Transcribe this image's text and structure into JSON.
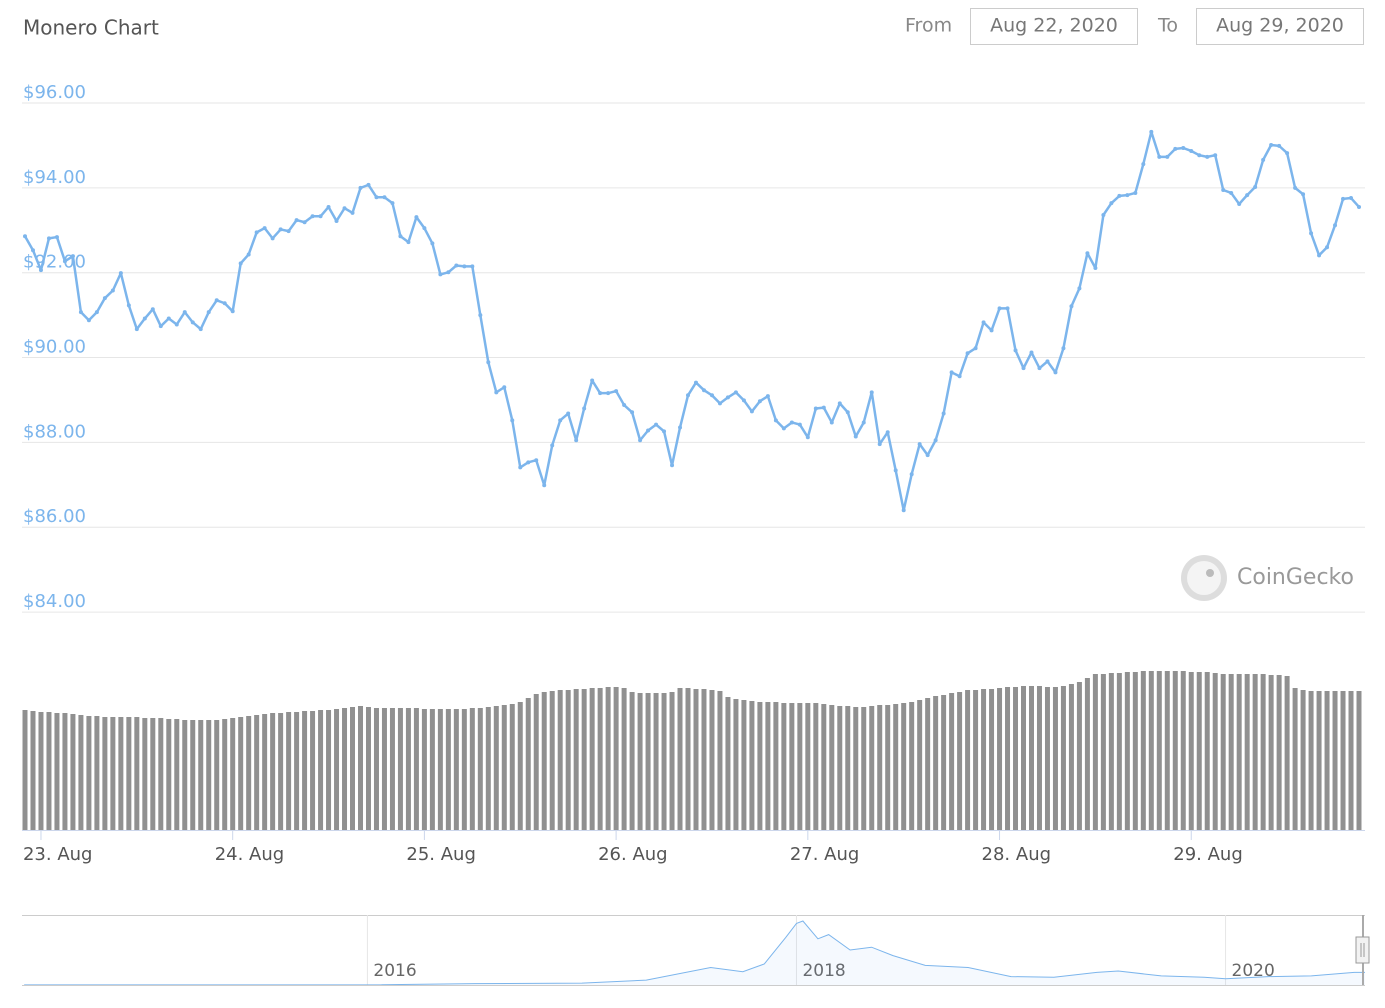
{
  "chart_data": [
    {
      "type": "line",
      "title": "Monero Chart",
      "from_label": "From",
      "from": "Aug 22, 2020",
      "to_label": "To",
      "to": "Aug 29, 2020",
      "watermark": "CoinGecko",
      "categories": [
        null,
        null,
        "23. Aug",
        null,
        null,
        null,
        null,
        null,
        null,
        null,
        null,
        null,
        null,
        null,
        null,
        null,
        null,
        null,
        null,
        null,
        null,
        null,
        null,
        null,
        null,
        null,
        "24. Aug",
        null,
        null,
        null,
        null,
        null,
        null,
        null,
        null,
        null,
        null,
        null,
        null,
        null,
        null,
        null,
        null,
        null,
        null,
        null,
        null,
        null,
        null,
        null,
        "25. Aug",
        null,
        null,
        null,
        null,
        null,
        null,
        null,
        null,
        null,
        null,
        null,
        null,
        null,
        null,
        null,
        null,
        null,
        null,
        null,
        null,
        null,
        null,
        null,
        "26. Aug",
        null,
        null,
        null,
        null,
        null,
        null,
        null,
        null,
        null,
        null,
        null,
        null,
        null,
        null,
        null,
        null,
        null,
        null,
        null,
        null,
        null,
        null,
        null,
        "27. Aug",
        null,
        null,
        null,
        null,
        null,
        null,
        null,
        null,
        null,
        null,
        null,
        null,
        null,
        null,
        null,
        null,
        null,
        null,
        null,
        null,
        null,
        null,
        null,
        "28. Aug",
        null,
        null,
        null,
        null,
        null,
        null,
        null,
        null,
        null,
        null,
        null,
        null,
        null,
        null,
        null,
        null,
        null,
        null,
        null,
        null,
        null,
        null,
        null,
        "29. Aug",
        null,
        null,
        null,
        null,
        null,
        null,
        null,
        null,
        null,
        null,
        null,
        null,
        null,
        null,
        null,
        null,
        null,
        null,
        null,
        null,
        null
      ],
      "series": [
        {
          "type": "line",
          "color": "#7cb5ec",
          "values": [
            92.86,
            92.53,
            92.06,
            92.81,
            92.84,
            92.27,
            92.39,
            91.07,
            90.88,
            91.07,
            91.4,
            91.58,
            91.99,
            91.23,
            90.67,
            90.92,
            91.14,
            90.74,
            90.92,
            90.78,
            91.07,
            90.83,
            90.67,
            91.07,
            91.35,
            91.28,
            91.09,
            92.22,
            92.43,
            92.95,
            93.05,
            92.81,
            93.02,
            92.98,
            93.24,
            93.19,
            93.33,
            93.33,
            93.55,
            93.22,
            93.52,
            93.41,
            94.0,
            94.07,
            93.78,
            93.78,
            93.64,
            92.86,
            92.72,
            93.31,
            93.05,
            92.69,
            91.96,
            92.01,
            92.17,
            92.15,
            92.15,
            91.0,
            89.89,
            89.18,
            89.3,
            88.52,
            87.41,
            87.53,
            87.58,
            86.99,
            87.93,
            88.52,
            88.68,
            88.05,
            88.8,
            89.46,
            89.16,
            89.16,
            89.21,
            88.88,
            88.71,
            88.05,
            88.28,
            88.42,
            88.26,
            87.46,
            88.35,
            89.11,
            89.41,
            89.23,
            89.11,
            88.92,
            89.06,
            89.18,
            88.99,
            88.73,
            88.97,
            89.09,
            88.52,
            88.33,
            88.47,
            88.42,
            88.12,
            88.8,
            88.82,
            88.47,
            88.92,
            88.71,
            88.14,
            88.47,
            89.18,
            87.96,
            88.24,
            87.34,
            86.4,
            87.25,
            87.96,
            87.7,
            88.05,
            88.68,
            89.65,
            89.56,
            90.1,
            90.22,
            90.83,
            90.64,
            91.16,
            91.16,
            90.17,
            89.75,
            90.12,
            89.75,
            89.91,
            89.65,
            90.22,
            91.21,
            91.63,
            92.46,
            92.11,
            93.36,
            93.64,
            93.81,
            93.83,
            93.88,
            94.56,
            95.32,
            94.73,
            94.73,
            94.92,
            94.94,
            94.87,
            94.77,
            94.73,
            94.77,
            93.95,
            93.88,
            93.62,
            93.83,
            94.02,
            94.66,
            95.01,
            94.99,
            94.82,
            94.0,
            93.85,
            92.93,
            92.41,
            92.6,
            93.12,
            93.74,
            93.76,
            93.55
          ]
        },
        {
          "type": "bar",
          "axis": "y2",
          "color": "#909090",
          "values": [
            120,
            119,
            118,
            118,
            117,
            117,
            116,
            115,
            114,
            114,
            113,
            113,
            113,
            113,
            113,
            112,
            112,
            112,
            111,
            111,
            110,
            110,
            110,
            110,
            110,
            111,
            112,
            113,
            114,
            115,
            116,
            117,
            117,
            118,
            118,
            119,
            119,
            120,
            120,
            121,
            122,
            123,
            124,
            123,
            122,
            122,
            122,
            122,
            122,
            122,
            121,
            121,
            121,
            121,
            121,
            121,
            122,
            122,
            123,
            124,
            125,
            126,
            128,
            132,
            136,
            138,
            139,
            140,
            140,
            141,
            141,
            142,
            142,
            143,
            143,
            142,
            138,
            137,
            137,
            137,
            137,
            138,
            142,
            142,
            141,
            141,
            140,
            139,
            133,
            131,
            130,
            129,
            128,
            128,
            128,
            127,
            127,
            127,
            127,
            127,
            126,
            125,
            124,
            124,
            123,
            123,
            124,
            125,
            125,
            126,
            127,
            128,
            130,
            132,
            134,
            135,
            137,
            138,
            140,
            140,
            141,
            141,
            142,
            143,
            143,
            144,
            144,
            144,
            143,
            143,
            144,
            146,
            148,
            152,
            156,
            156,
            157,
            157,
            158,
            158,
            159,
            159,
            159,
            159,
            159,
            159,
            158,
            158,
            158,
            157,
            156,
            156,
            156,
            156,
            156,
            156,
            155,
            155,
            154,
            142,
            140,
            139,
            139,
            139,
            139,
            139,
            139,
            139
          ]
        }
      ],
      "ylim": [
        83,
        97
      ],
      "yticks": [
        {
          "value": 84,
          "label": "$84.00"
        },
        {
          "value": 86,
          "label": "$86.00"
        },
        {
          "value": 88,
          "label": "$88.00"
        },
        {
          "value": 90,
          "label": "$90.00"
        },
        {
          "value": 92,
          "label": "$92.00"
        },
        {
          "value": 94,
          "label": "$94.00"
        },
        {
          "value": 96,
          "label": "$96.00"
        }
      ],
      "y2lim": [
        0,
        170
      ],
      "grid": true
    },
    {
      "type": "line",
      "color": "#7cb5ec",
      "x": [
        2014.4,
        2015.0,
        2015.5,
        2016.0,
        2016.5,
        2017.0,
        2017.3,
        2017.6,
        2017.75,
        2017.85,
        2017.95,
        2018.0,
        2018.03,
        2018.1,
        2018.15,
        2018.25,
        2018.35,
        2018.45,
        2018.6,
        2018.8,
        2019.0,
        2019.2,
        2019.4,
        2019.5,
        2019.7,
        2019.9,
        2020.0,
        2020.2,
        2020.4,
        2020.6,
        2020.65
      ],
      "values": [
        1,
        0.5,
        0.6,
        1,
        10,
        13,
        35,
        125,
        95,
        150,
        340,
        440,
        457,
        330,
        360,
        250,
        270,
        210,
        140,
        125,
        60,
        55,
        90,
        100,
        65,
        55,
        45,
        60,
        65,
        90,
        90
      ],
      "xlim": [
        2014.39,
        2020.65
      ],
      "xticks": [
        2016,
        2018,
        2020
      ],
      "ylim": [
        0,
        500
      ]
    }
  ]
}
